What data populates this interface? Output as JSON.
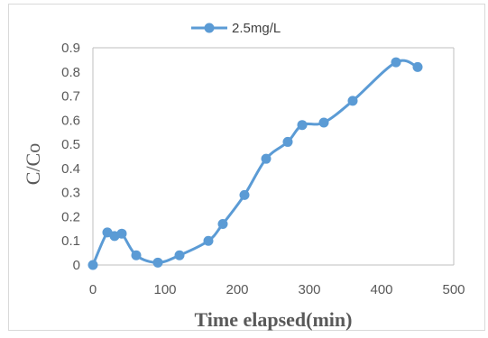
{
  "chart_data": {
    "type": "line",
    "title": "",
    "xlabel": "Time elapsed(min)",
    "ylabel": "C/Co",
    "xlim": [
      0,
      500
    ],
    "ylim": [
      0,
      0.9
    ],
    "x_ticks": [
      "0",
      "100",
      "200",
      "300",
      "400",
      "500"
    ],
    "y_ticks": [
      "0",
      "0.1",
      "0.2",
      "0.3",
      "0.4",
      "0.5",
      "0.6",
      "0.7",
      "0.8",
      "0.9"
    ],
    "grid": false,
    "legend_position": "top",
    "series": [
      {
        "name": "2.5mg/L",
        "color": "#5B9BD5",
        "smooth": true,
        "x": [
          0,
          20,
          30,
          40,
          60,
          90,
          120,
          160,
          180,
          210,
          240,
          270,
          290,
          320,
          360,
          420,
          450
        ],
        "y": [
          0.0,
          0.135,
          0.12,
          0.13,
          0.04,
          0.01,
          0.04,
          0.1,
          0.17,
          0.29,
          0.44,
          0.51,
          0.58,
          0.59,
          0.68,
          0.84,
          0.82
        ]
      }
    ]
  }
}
